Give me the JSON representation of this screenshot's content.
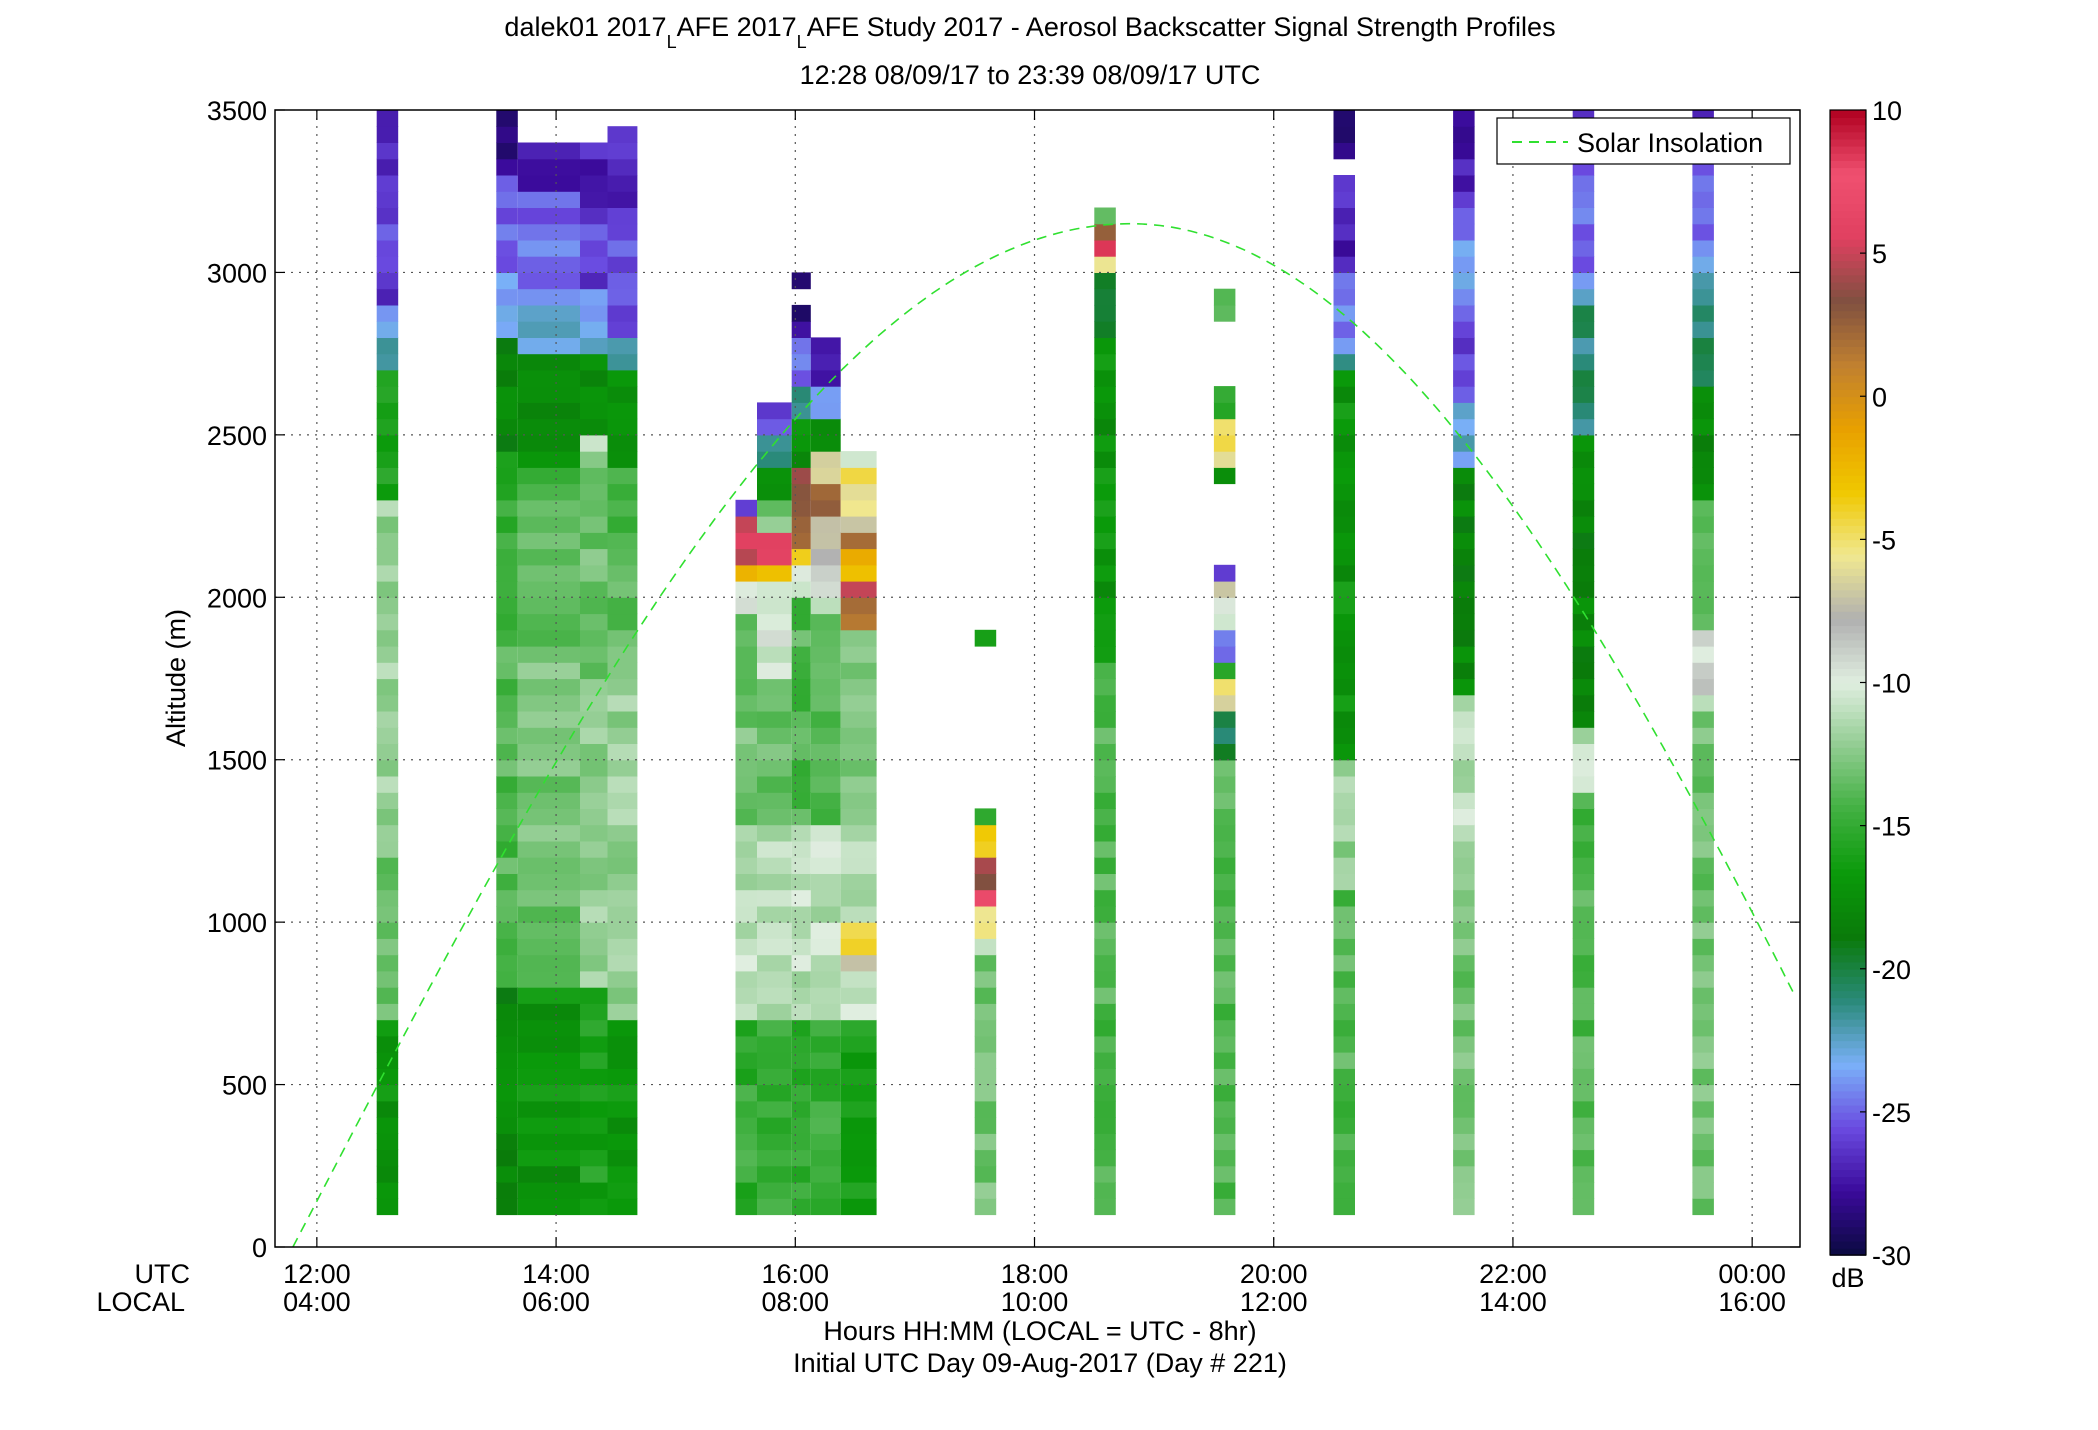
{
  "chart_data": {
    "type": "heatmap",
    "title_main": "dalek01 2017",
    "title_sub1": "L",
    "title_mid": "AFE 2017",
    "title_sub2": "L",
    "title_end": "AFE Study 2017 - Aerosol Backscatter Signal Strength Profiles",
    "subtitle": "12:28 08/09/17 to 23:39 08/09/17  UTC",
    "ylabel": "Altitude (m)",
    "xlabel": "Hours HH:MM  (LOCAL = UTC - 8hr)",
    "xlabel2": "Initial UTC Day 09-Aug-2017 (Day # 221)",
    "x_row_label_utc": "UTC",
    "x_row_label_local": "LOCAL",
    "colorbar_unit": "dB",
    "legend_label": "Solar Insolation",
    "legend_position": "top-right",
    "grid": true,
    "xlim_hours": [
      11.65,
      24.4
    ],
    "ylim": [
      0,
      3500
    ],
    "y_ticks": [
      0,
      500,
      1000,
      1500,
      2000,
      2500,
      3000,
      3500
    ],
    "y_tick_labels": [
      "0",
      "500",
      "1000",
      "1500",
      "2000",
      "2500",
      "3000",
      "3500"
    ],
    "x_ticks_hours": [
      12,
      14,
      16,
      18,
      20,
      22,
      24
    ],
    "x_tick_labels_utc": [
      "12:00",
      "14:00",
      "16:00",
      "18:00",
      "20:00",
      "22:00",
      "00:00"
    ],
    "x_tick_labels_local": [
      "04:00",
      "06:00",
      "08:00",
      "10:00",
      "12:00",
      "14:00",
      "16:00"
    ],
    "colorbar_range": [
      -30,
      10
    ],
    "colorbar_ticks": [
      10,
      5,
      0,
      -5,
      -10,
      -15,
      -20,
      -25,
      -30
    ],
    "colorbar_tick_labels": [
      "10",
      "5",
      "0",
      "-5",
      "-10",
      "-15",
      "-20",
      "-25",
      "-30"
    ],
    "colormap": [
      "#0a0a40",
      "#3a0a9a",
      "#6a4ae0",
      "#7ab0f8",
      "#2a8a7a",
      "#0a7a0a",
      "#0a9a0a",
      "#40b040",
      "#90cc90",
      "#e0eee0",
      "#b0b0b0",
      "#f0e890",
      "#f0c800",
      "#e8a000",
      "#c08030",
      "#805040",
      "#e04060",
      "#f05070",
      "#b00020"
    ],
    "cell_height_m": 50,
    "profiles": [
      {
        "t0": 12.5,
        "t1": 12.68,
        "segments": [
          [
            100,
            700,
            -17
          ],
          [
            700,
            1300,
            -13
          ],
          [
            1300,
            2300,
            -12
          ],
          [
            2300,
            2700,
            -16
          ],
          [
            2700,
            2800,
            -21
          ],
          [
            2800,
            2900,
            -23
          ],
          [
            2900,
            3300,
            -26
          ],
          [
            3300,
            3500,
            -27
          ]
        ]
      },
      {
        "t0": 13.5,
        "t1": 13.68,
        "segments": [
          [
            100,
            800,
            -18
          ],
          [
            800,
            2000,
            -14
          ],
          [
            2000,
            2450,
            -15
          ],
          [
            2450,
            2800,
            -18
          ],
          [
            2800,
            3000,
            -23
          ],
          [
            3000,
            3200,
            -25
          ],
          [
            3200,
            3300,
            -24
          ],
          [
            3300,
            3500,
            -28
          ]
        ]
      },
      {
        "t0": 13.68,
        "t1": 14.2,
        "segments": [
          [
            100,
            800,
            -17
          ],
          [
            800,
            1800,
            -13
          ],
          [
            1800,
            2400,
            -14
          ],
          [
            2400,
            2750,
            -18
          ],
          [
            2750,
            2950,
            -23
          ],
          [
            2950,
            3250,
            -25
          ],
          [
            3250,
            3400,
            -27
          ]
        ]
      },
      {
        "t0": 14.2,
        "t1": 14.43,
        "segments": [
          [
            100,
            800,
            -16
          ],
          [
            800,
            1700,
            -12
          ],
          [
            1700,
            2500,
            -13
          ],
          [
            2450,
            2500,
            -10
          ],
          [
            2500,
            2750,
            -18
          ],
          [
            2750,
            2950,
            -23
          ],
          [
            2950,
            3200,
            -26
          ],
          [
            3200,
            3400,
            -27
          ]
        ]
      },
      {
        "t0": 14.43,
        "t1": 14.68,
        "segments": [
          [
            100,
            700,
            -17
          ],
          [
            700,
            1900,
            -12
          ],
          [
            1900,
            2400,
            -14
          ],
          [
            2400,
            2700,
            -17
          ],
          [
            2700,
            2800,
            -22
          ],
          [
            2800,
            3200,
            -25
          ],
          [
            3200,
            3450,
            -27
          ]
        ]
      },
      {
        "t0": 15.5,
        "t1": 15.68,
        "segments": [
          [
            100,
            700,
            -15
          ],
          [
            700,
            1300,
            -11
          ],
          [
            1300,
            1950,
            -13
          ],
          [
            1950,
            2050,
            -9
          ],
          [
            2050,
            2100,
            -2
          ],
          [
            2100,
            2250,
            5
          ],
          [
            2250,
            2300,
            -26
          ]
        ]
      },
      {
        "t0": 15.68,
        "t1": 15.97,
        "segments": [
          [
            100,
            700,
            -15
          ],
          [
            700,
            1300,
            -11
          ],
          [
            1300,
            1750,
            -13
          ],
          [
            1750,
            1950,
            -10
          ],
          [
            1950,
            2050,
            -11
          ],
          [
            2050,
            2100,
            -2
          ],
          [
            2100,
            2200,
            5
          ],
          [
            2200,
            2300,
            -13
          ],
          [
            2300,
            2400,
            -17
          ],
          [
            2400,
            2500,
            -22
          ],
          [
            2500,
            2600,
            -26
          ]
        ]
      },
      {
        "t0": 15.97,
        "t1": 16.13,
        "segments": [
          [
            100,
            700,
            -15
          ],
          [
            700,
            1300,
            -11
          ],
          [
            1300,
            2000,
            -14
          ],
          [
            2000,
            2100,
            -10
          ],
          [
            2100,
            2150,
            -4
          ],
          [
            2150,
            2300,
            3
          ],
          [
            2300,
            2400,
            4
          ],
          [
            2400,
            2550,
            -17
          ],
          [
            2550,
            2650,
            -22
          ],
          [
            2650,
            2800,
            -25
          ],
          [
            2800,
            2900,
            -28
          ],
          [
            2950,
            3000,
            -28
          ]
        ]
      },
      {
        "t0": 16.13,
        "t1": 16.38,
        "segments": [
          [
            100,
            700,
            -15
          ],
          [
            700,
            1300,
            -11
          ],
          [
            1300,
            1950,
            -14
          ],
          [
            1950,
            2100,
            -10
          ],
          [
            2100,
            2250,
            -7
          ],
          [
            2250,
            2350,
            3
          ],
          [
            2350,
            2450,
            -6
          ],
          [
            2450,
            2550,
            -17
          ],
          [
            2550,
            2650,
            -23
          ],
          [
            2650,
            2800,
            -27
          ]
        ]
      },
      {
        "t0": 16.38,
        "t1": 16.68,
        "segments": [
          [
            100,
            700,
            -16
          ],
          [
            700,
            900,
            -11
          ],
          [
            800,
            850,
            -10
          ],
          [
            850,
            900,
            -8
          ],
          [
            900,
            1000,
            -4
          ],
          [
            1000,
            1300,
            -11
          ],
          [
            1300,
            1900,
            -13
          ],
          [
            1900,
            2000,
            1
          ],
          [
            2000,
            2050,
            6
          ],
          [
            2050,
            2150,
            -2
          ],
          [
            2150,
            2200,
            1
          ],
          [
            2200,
            2250,
            -8
          ],
          [
            2250,
            2400,
            -5
          ],
          [
            2400,
            2450,
            -10
          ]
        ]
      },
      {
        "t0": 17.5,
        "t1": 17.68,
        "segments": [
          [
            100,
            900,
            -13
          ],
          [
            900,
            950,
            -10
          ],
          [
            950,
            1050,
            -6
          ],
          [
            1050,
            1100,
            8
          ],
          [
            1100,
            1200,
            4
          ],
          [
            1200,
            1300,
            -3
          ],
          [
            1300,
            1350,
            -15
          ],
          [
            1850,
            1900,
            -17
          ]
        ]
      },
      {
        "t0": 18.5,
        "t1": 18.68,
        "segments": [
          [
            100,
            1800,
            -14
          ],
          [
            1800,
            2800,
            -17
          ],
          [
            2800,
            3000,
            -19
          ],
          [
            3000,
            3050,
            -6
          ],
          [
            3050,
            3100,
            8
          ],
          [
            3100,
            3150,
            2
          ],
          [
            3150,
            3200,
            -14
          ]
        ]
      },
      {
        "t0": 19.5,
        "t1": 19.68,
        "segments": [
          [
            100,
            1650,
            -14
          ],
          [
            1650,
            1500,
            -19
          ],
          [
            1500,
            1650,
            -20
          ],
          [
            1650,
            1750,
            -6
          ],
          [
            1750,
            1800,
            -16
          ],
          [
            1800,
            1900,
            -24
          ],
          [
            1900,
            2000,
            -10
          ],
          [
            2000,
            2050,
            -7
          ],
          [
            2050,
            2100,
            -26
          ],
          [
            2350,
            2400,
            -17
          ],
          [
            2400,
            2550,
            -5
          ],
          [
            2550,
            2650,
            -15
          ],
          [
            2850,
            2950,
            -14
          ]
        ]
      },
      {
        "t0": 20.5,
        "t1": 20.68,
        "segments": [
          [
            100,
            1100,
            -14
          ],
          [
            1100,
            1500,
            -12
          ],
          [
            1500,
            2700,
            -17
          ],
          [
            2700,
            2750,
            -22
          ],
          [
            2750,
            3000,
            -24
          ],
          [
            3000,
            3300,
            -27
          ],
          [
            3350,
            3500,
            -28
          ]
        ]
      },
      {
        "t0": 21.5,
        "t1": 21.68,
        "segments": [
          [
            100,
            1500,
            -13
          ],
          [
            1200,
            1700,
            -11
          ],
          [
            1700,
            2400,
            -18
          ],
          [
            2400,
            2600,
            -23
          ],
          [
            2600,
            2900,
            -26
          ],
          [
            2900,
            3200,
            -24
          ],
          [
            3200,
            3500,
            -27
          ]
        ]
      },
      {
        "t0": 22.5,
        "t1": 22.68,
        "segments": [
          [
            100,
            1400,
            -14
          ],
          [
            1400,
            1600,
            -11
          ],
          [
            1600,
            2500,
            -18
          ],
          [
            2500,
            2900,
            -21
          ],
          [
            2900,
            3000,
            -23
          ],
          [
            3000,
            3350,
            -25
          ],
          [
            3350,
            3500,
            -27
          ]
        ]
      },
      {
        "t0": 23.5,
        "t1": 23.68,
        "segments": [
          [
            100,
            1650,
            -13
          ],
          [
            1650,
            1700,
            -10
          ],
          [
            1700,
            1800,
            -8
          ],
          [
            1800,
            1900,
            -10
          ],
          [
            1900,
            2300,
            -13
          ],
          [
            2300,
            2650,
            -18
          ],
          [
            2650,
            2950,
            -21
          ],
          [
            2950,
            3050,
            -23
          ],
          [
            3050,
            3300,
            -25
          ],
          [
            3300,
            3500,
            -26
          ]
        ]
      }
    ],
    "solar_insolation_curve": {
      "peak_hour": 18.8,
      "peak_altitude": 3150,
      "zero_hours": [
        11.8,
        25.4
      ]
    }
  }
}
